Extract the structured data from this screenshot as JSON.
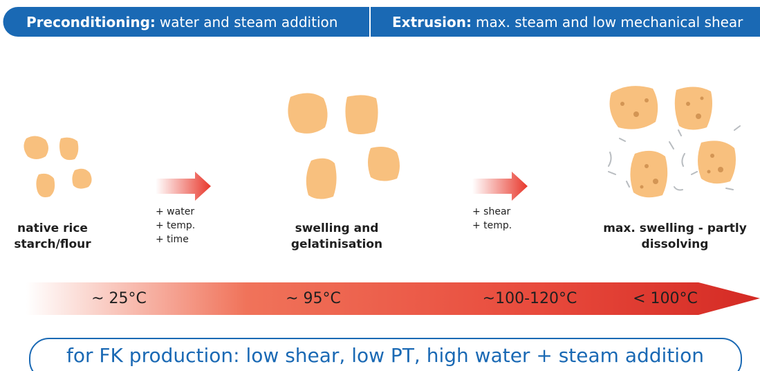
{
  "header": {
    "segments": [
      {
        "title": "Preconditioning:",
        "text": "water and steam addition"
      },
      {
        "title": "Extrusion:",
        "text": "max. steam and low mechanical shear"
      }
    ]
  },
  "stages": [
    {
      "label_lines": [
        "native rice",
        "starch/flour"
      ]
    },
    {
      "label_lines": [
        "swelling and",
        "gelatinisation"
      ]
    },
    {
      "label_lines": [
        "max. swelling - partly",
        "dissolving"
      ]
    }
  ],
  "transitions": [
    {
      "lines": [
        "+ water",
        "+ temp.",
        "+ time"
      ]
    },
    {
      "lines": [
        "+ shear",
        "+ temp."
      ]
    }
  ],
  "temperatures": [
    "~ 25°C",
    "~ 95°C",
    "~100-120°C",
    "< 100°C"
  ],
  "footer": "for FK production: low shear, low PT, high water + steam addition"
}
